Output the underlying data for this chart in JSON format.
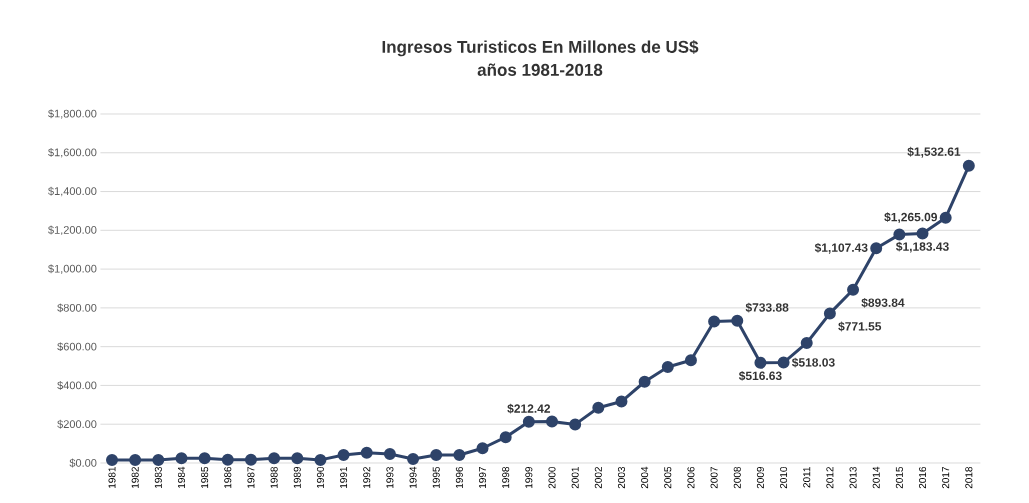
{
  "chart_data": {
    "type": "line",
    "title": "Ingresos Turisticos  En Millones de US$\naños  1981-2018",
    "categories": [
      "1981",
      "1982",
      "1983",
      "1984",
      "1985",
      "1986",
      "1987",
      "1988",
      "1989",
      "1990",
      "1991",
      "1992",
      "1993",
      "1994",
      "1995",
      "1996",
      "1997",
      "1998",
      "1999",
      "2000",
      "2001",
      "2002",
      "2003",
      "2004",
      "2005",
      "2006",
      "2007",
      "2008",
      "2009",
      "2010",
      "2011",
      "2012",
      "2013",
      "2014",
      "2015",
      "2016",
      "2017",
      "2018"
    ],
    "series": [
      {
        "color": "#2e4369",
        "values": [
          15,
          15,
          16,
          24,
          24,
          17,
          17,
          24,
          24,
          16,
          41,
          53,
          46,
          21,
          41,
          41,
          76,
          133,
          212.42,
          214,
          199,
          285,
          317,
          419,
          495,
          530,
          730,
          733.88,
          516.63,
          518.03,
          619,
          771.55,
          893.84,
          1107.43,
          1178,
          1183.43,
          1265.09,
          1532.61
        ],
        "value_labels": [
          null,
          null,
          null,
          null,
          null,
          null,
          null,
          null,
          null,
          null,
          null,
          null,
          null,
          null,
          null,
          null,
          null,
          null,
          "$212.42",
          null,
          null,
          null,
          null,
          null,
          null,
          null,
          null,
          "$733.88",
          "$516.63",
          "$518.03",
          null,
          "$771.55",
          "$893.84",
          "$1,107.43",
          null,
          "$1,183.43",
          "$1,265.09",
          "$1,532.61"
        ]
      }
    ],
    "ylim": [
      0,
      1800
    ],
    "yticks": [
      {
        "value": 0,
        "label": "$0.00"
      },
      {
        "value": 200,
        "label": "$200.00"
      },
      {
        "value": 400,
        "label": "$400.00"
      },
      {
        "value": 600,
        "label": "$600.00"
      },
      {
        "value": 800,
        "label": "$800.00"
      },
      {
        "value": 1000,
        "label": "$1,000.00"
      },
      {
        "value": 1200,
        "label": "$1,200.00"
      },
      {
        "value": 1400,
        "label": "$1,400.00"
      },
      {
        "value": 1600,
        "label": "$1,600.00"
      },
      {
        "value": 1800,
        "label": "$1,800.00"
      }
    ],
    "grid": "y",
    "marker": "circle",
    "line_style": "solid"
  }
}
